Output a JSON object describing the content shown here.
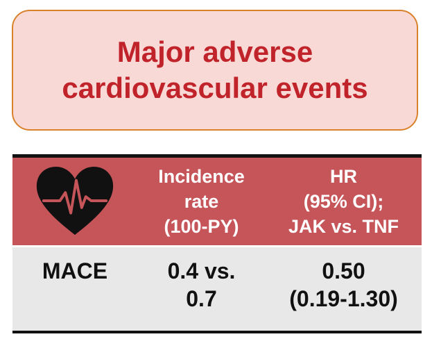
{
  "title": {
    "line1": "Major adverse",
    "line2": "cardiovascular events"
  },
  "table": {
    "header": {
      "icon": "heart-pulse-icon",
      "col2": [
        "Incidence",
        "rate",
        "(100-PY)"
      ],
      "col3": [
        "HR",
        "(95% CI);",
        "JAK vs. TNF"
      ]
    },
    "row": {
      "label": "MACE",
      "incidence": [
        "0.4 vs.",
        "0.7"
      ],
      "hr": [
        "0.50",
        "(0.19-1.30)"
      ]
    }
  },
  "colors": {
    "title_text": "#c0232a",
    "title_bg": "#f9d9d6",
    "title_border": "#d9822b",
    "header_bg": "#c6555a",
    "body_bg": "#e8e8e8",
    "heart": "#111111",
    "pulse_line": "#c6555a"
  }
}
